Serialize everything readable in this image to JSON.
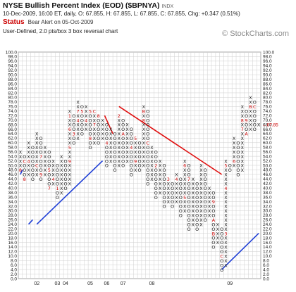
{
  "header": {
    "title": "NYSE Bullish Percent Index (EOD) ($BPNYA)",
    "exchange": "INDX",
    "quote": "10-Dec-2009, 16:00 ET, daily, O: 67.855, H: 67.855, L: 67.855, C: 67.855, Chg: +0.347 (0.51%)",
    "status_label": "Status",
    "status_value": "Bear Alert on 05-Oct-2009",
    "description": "User-Defined, 2.0 pts/box 3 box reversal chart",
    "brand": "© StockCharts.com"
  },
  "colors": {
    "x_mark": "#1a1a1a",
    "o_mark": "#1a1a1a",
    "month_mark": "#cc0000",
    "support_line": "#1f3fd6",
    "resistance_line": "#e01010",
    "grid": "#cfcfcf",
    "last_price": "#cc0000"
  },
  "chart_data": {
    "type": "point-and-figure",
    "box_size": 2.0,
    "reversal": 3,
    "ylim": [
      0,
      100
    ],
    "y_tick_labels": [
      "0.0",
      "2.0",
      "4.0",
      "6.0",
      "8.0",
      "10.0",
      "12.0",
      "14.0",
      "16.0",
      "18.0",
      "20.0",
      "22.0",
      "24.0",
      "26.0",
      "28.0",
      "30.0",
      "32.0",
      "34.0",
      "36.0",
      "38.0",
      "40.0",
      "42.0",
      "44.0",
      "46.0",
      "48.0",
      "50.0",
      "52.0",
      "54.0",
      "56.0",
      "58.0",
      "60.0",
      "62.0",
      "64.0",
      "66.0",
      "68.0",
      "70.0",
      "72.0",
      "74.0",
      "76.0",
      "78.0",
      "80.0",
      "82.0",
      "84.0",
      "86.0",
      "88.0",
      "90.0",
      "92.0",
      "94.0",
      "96.0",
      "98.0",
      "100.0"
    ],
    "x_year_labels": [
      {
        "label": "02",
        "col": 4
      },
      {
        "label": "03",
        "col": 9
      },
      {
        "label": "04",
        "col": 11
      },
      {
        "label": "05",
        "col": 17
      },
      {
        "label": "06",
        "col": 21
      },
      {
        "label": "07",
        "col": 25
      },
      {
        "label": "08",
        "col": 32
      },
      {
        "label": "09",
        "col": 51
      }
    ],
    "last_price_label": "67.85",
    "columns": [
      {
        "t": "X",
        "lo": 48,
        "hi": 56,
        "m": {
          "48": "8"
        }
      },
      {
        "t": "O",
        "lo": 44,
        "hi": 54,
        "m": {
          "52": "C",
          "44": "8"
        }
      },
      {
        "t": "X",
        "lo": 46,
        "hi": 60,
        "m": {
          "52": "4"
        }
      },
      {
        "t": "O",
        "lo": 44,
        "hi": 58
      },
      {
        "t": "X",
        "lo": 46,
        "hi": 64,
        "m": {
          "50": "C"
        }
      },
      {
        "t": "O",
        "lo": 44,
        "hi": 62,
        "m": {
          "54": "7",
          "46": "9"
        }
      },
      {
        "t": "X",
        "lo": 46,
        "hi": 58
      },
      {
        "t": "O",
        "lo": 40,
        "hi": 56,
        "m": {
          "48": "5",
          "40": "7"
        }
      },
      {
        "t": "X",
        "lo": 42,
        "hi": 52,
        "m": {
          "44": "4"
        }
      },
      {
        "t": "O",
        "lo": 36,
        "hi": 50,
        "m": {
          "40": "1"
        }
      },
      {
        "t": "X",
        "lo": 38,
        "hi": 54
      },
      {
        "t": "O",
        "lo": 40,
        "hi": 52
      },
      {
        "t": "X",
        "lo": 42,
        "hi": 74,
        "m": {
          "52": "9",
          "58": "5",
          "66": "6",
          "72": "1"
        }
      },
      {
        "t": "O",
        "lo": 60,
        "hi": 72,
        "m": {
          "64": "3"
        }
      },
      {
        "t": "X",
        "lo": 62,
        "hi": 78,
        "m": {
          "70": "4",
          "74": "7"
        }
      },
      {
        "t": "O",
        "lo": 64,
        "hi": 76,
        "m": {
          "74": "5"
        }
      },
      {
        "t": "X",
        "lo": 66,
        "hi": 76,
        "m": {
          "70": "4"
        }
      },
      {
        "t": "O",
        "lo": 58,
        "hi": 74,
        "m": {
          "74": "5",
          "62": "8"
        }
      },
      {
        "t": "X",
        "lo": 60,
        "hi": 74,
        "m": {
          "68": "7",
          "74": "C"
        }
      },
      {
        "t": "O",
        "lo": 60,
        "hi": 72,
        "m": {
          "72": "8"
        }
      },
      {
        "t": "X",
        "lo": 62,
        "hi": 70
      },
      {
        "t": "O",
        "lo": 50,
        "hi": 68,
        "m": {
          "60": "4"
        }
      },
      {
        "t": "X",
        "lo": 52,
        "hi": 66
      },
      {
        "t": "O",
        "lo": 48,
        "hi": 64
      },
      {
        "t": "X",
        "lo": 50,
        "hi": 72,
        "m": {
          "72": "2"
        }
      },
      {
        "t": "O",
        "lo": 50,
        "hi": 70,
        "m": {
          "64": "A"
        }
      },
      {
        "t": "X",
        "lo": 52,
        "hi": 68
      },
      {
        "t": "O",
        "lo": 46,
        "hi": 66,
        "m": {
          "58": "4"
        }
      },
      {
        "t": "X",
        "lo": 48,
        "hi": 62,
        "m": {
          "52": "9",
          "62": "5"
        }
      },
      {
        "t": "O",
        "lo": 48,
        "hi": 60
      },
      {
        "t": "X",
        "lo": 50,
        "hi": 76,
        "m": {
          "70": "8",
          "74": "B"
        }
      },
      {
        "t": "O",
        "lo": 42,
        "hi": 74,
        "m": {
          "60": "C"
        }
      },
      {
        "t": "X",
        "lo": 44,
        "hi": 58
      },
      {
        "t": "O",
        "lo": 36,
        "hi": 56,
        "m": {
          "50": "2"
        }
      },
      {
        "t": "X",
        "lo": 38,
        "hi": 52
      },
      {
        "t": "O",
        "lo": 32,
        "hi": 50
      },
      {
        "t": "X",
        "lo": 34,
        "hi": 44,
        "m": {
          "44": "3"
        }
      },
      {
        "t": "O",
        "lo": 32,
        "hi": 42
      },
      {
        "t": "X",
        "lo": 34,
        "hi": 46,
        "m": {
          "44": "4"
        }
      },
      {
        "t": "O",
        "lo": 28,
        "hi": 44
      },
      {
        "t": "X",
        "lo": 30,
        "hi": 52,
        "m": {
          "36": "5",
          "50": "6"
        }
      },
      {
        "t": "O",
        "lo": 22,
        "hi": 50,
        "m": {
          "44": "7"
        }
      },
      {
        "t": "X",
        "lo": 24,
        "hi": 44
      },
      {
        "t": "O",
        "lo": 22,
        "hi": 42
      },
      {
        "t": "X",
        "lo": 24,
        "hi": 50
      },
      {
        "t": "O",
        "lo": 26,
        "hi": 48
      },
      {
        "t": "X",
        "lo": 28,
        "hi": 40
      },
      {
        "t": "O",
        "lo": 14,
        "hi": 38,
        "m": {
          "34": "9",
          "26": "A",
          "20": "B"
        }
      },
      {
        "t": "X",
        "lo": 16,
        "hi": 24
      },
      {
        "t": "O",
        "lo": 4,
        "hi": 22,
        "m": {
          "10": "C"
        }
      },
      {
        "t": "X",
        "lo": 6,
        "hi": 52,
        "m": {
          "20": "3",
          "40": "4",
          "50": "5"
        }
      },
      {
        "t": "O",
        "lo": 48,
        "hi": 50
      },
      {
        "t": "X",
        "lo": 50,
        "hi": 62,
        "m": {
          "52": "6"
        }
      },
      {
        "t": "O",
        "lo": 46,
        "hi": 60
      },
      {
        "t": "X",
        "lo": 48,
        "hi": 76,
        "m": {
          "66": "7",
          "70": "8"
        }
      },
      {
        "t": "O",
        "lo": 64,
        "hi": 74,
        "m": {
          "70": "9",
          "64": "A"
        }
      },
      {
        "t": "X",
        "lo": 66,
        "hi": 80,
        "m": {
          "76": "B"
        }
      },
      {
        "t": "O",
        "lo": 66,
        "hi": 78,
        "m": {
          "76": "C"
        }
      },
      {
        "t": "X",
        "lo": 68,
        "hi": 68
      }
    ],
    "lines": [
      {
        "kind": "support",
        "from": [
          0,
          46
        ],
        "to": [
          0.5,
          48
        ]
      },
      {
        "kind": "support",
        "from": [
          2,
          24
        ],
        "to": [
          3,
          26
        ]
      },
      {
        "kind": "support",
        "from": [
          4,
          24
        ],
        "to": [
          20,
          52
        ]
      },
      {
        "kind": "resistance",
        "from": [
          20.5,
          72
        ],
        "to": [
          22.5,
          64
        ]
      },
      {
        "kind": "resistance",
        "from": [
          24,
          76
        ],
        "to": [
          49,
          46
        ]
      },
      {
        "kind": "support",
        "from": [
          49,
          4
        ],
        "to": [
          58,
          20
        ]
      }
    ]
  }
}
